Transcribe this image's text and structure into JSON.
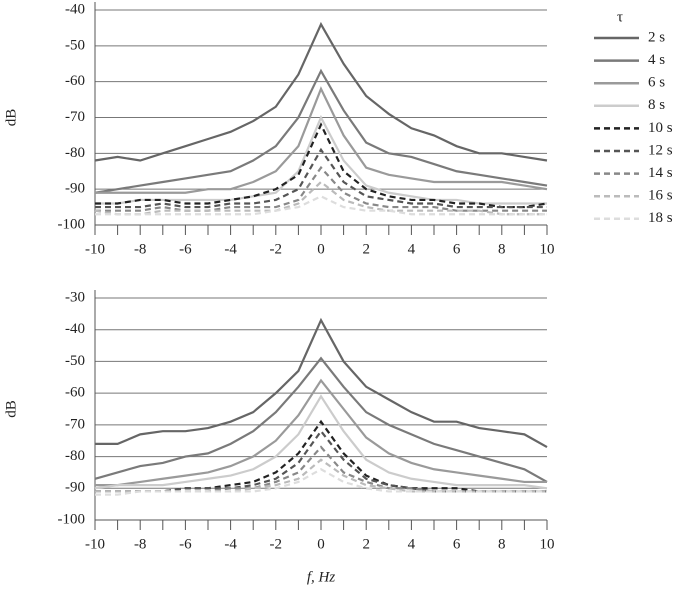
{
  "chart_data": [
    {
      "type": "line",
      "ylabel": "dB",
      "legend_title": "τ",
      "legend": "right",
      "grid": true,
      "x": [
        -10,
        -9,
        -8,
        -7,
        -6,
        -5,
        -4,
        -3,
        -2,
        -1,
        0,
        1,
        2,
        3,
        4,
        5,
        6,
        7,
        8,
        9,
        10
      ],
      "xlim": [
        -10,
        10
      ],
      "xticks": [
        -10,
        -8,
        -6,
        -4,
        -2,
        0,
        2,
        4,
        6,
        8,
        10
      ],
      "xminorticks": [
        -9,
        -7,
        -5,
        -3,
        -1,
        1,
        3,
        5,
        7,
        9
      ],
      "ylim": [
        -100,
        -40
      ],
      "yticks": [
        -100,
        -90,
        -80,
        -70,
        -60,
        -50,
        -40
      ],
      "series": [
        {
          "name": "2 s",
          "color": "#666666",
          "dash": false,
          "values": [
            -82,
            -81,
            -82,
            -80,
            -78,
            -76,
            -74,
            -71,
            -67,
            -58,
            -44,
            -55,
            -64,
            -69,
            -73,
            -75,
            -78,
            -80,
            -80,
            -81,
            -82
          ]
        },
        {
          "name": "4 s",
          "color": "#7a7a7a",
          "dash": false,
          "values": [
            -91,
            -90,
            -89,
            -88,
            -87,
            -86,
            -85,
            -82,
            -78,
            -70,
            -57,
            -68,
            -77,
            -80,
            -81,
            -83,
            -85,
            -86,
            -87,
            -88,
            -89
          ]
        },
        {
          "name": "6 s",
          "color": "#9a9a9a",
          "dash": false,
          "values": [
            -91,
            -91,
            -91,
            -91,
            -91,
            -90,
            -90,
            -88,
            -85,
            -78,
            -62,
            -75,
            -84,
            -86,
            -87,
            -88,
            -88,
            -88,
            -88,
            -89,
            -90
          ]
        },
        {
          "name": "8 s",
          "color": "#cccccc",
          "dash": false,
          "values": [
            -94,
            -94,
            -93,
            -93,
            -93,
            -93,
            -93,
            -92,
            -91,
            -85,
            -70,
            -82,
            -89,
            -91,
            -92,
            -93,
            -93,
            -94,
            -94,
            -94,
            -94
          ]
        },
        {
          "name": "10 s",
          "color": "#222222",
          "dash": true,
          "values": [
            -94,
            -94,
            -93,
            -93,
            -94,
            -94,
            -93,
            -92,
            -90,
            -86,
            -72,
            -85,
            -90,
            -92,
            -93,
            -93,
            -94,
            -94,
            -95,
            -95,
            -94
          ]
        },
        {
          "name": "12 s",
          "color": "#555555",
          "dash": true,
          "values": [
            -95,
            -95,
            -95,
            -94,
            -95,
            -95,
            -94,
            -94,
            -93,
            -90,
            -79,
            -88,
            -92,
            -93,
            -94,
            -94,
            -95,
            -95,
            -95,
            -95,
            -95
          ]
        },
        {
          "name": "14 s",
          "color": "#888888",
          "dash": true,
          "values": [
            -96,
            -96,
            -96,
            -95,
            -96,
            -96,
            -95,
            -95,
            -95,
            -93,
            -84,
            -91,
            -94,
            -95,
            -95,
            -95,
            -96,
            -96,
            -96,
            -96,
            -96
          ]
        },
        {
          "name": "16 s",
          "color": "#bbbbbb",
          "dash": true,
          "values": [
            -96,
            -97,
            -97,
            -96,
            -96,
            -96,
            -96,
            -96,
            -96,
            -94,
            -88,
            -93,
            -95,
            -96,
            -96,
            -96,
            -96,
            -96,
            -97,
            -97,
            -97
          ]
        },
        {
          "name": "18 s",
          "color": "#dddddd",
          "dash": true,
          "values": [
            -97,
            -97,
            -97,
            -97,
            -97,
            -97,
            -97,
            -97,
            -96,
            -95,
            -92,
            -95,
            -96,
            -96,
            -97,
            -97,
            -97,
            -97,
            -97,
            -97,
            -97
          ]
        }
      ]
    },
    {
      "type": "line",
      "ylabel": "dB",
      "xlabel": "f, Hz",
      "grid": true,
      "x": [
        -10,
        -9,
        -8,
        -7,
        -6,
        -5,
        -4,
        -3,
        -2,
        -1,
        0,
        1,
        2,
        3,
        4,
        5,
        6,
        7,
        8,
        9,
        10
      ],
      "xlim": [
        -10,
        10
      ],
      "xticks": [
        -10,
        -8,
        -6,
        -4,
        -2,
        0,
        2,
        4,
        6,
        8,
        10
      ],
      "xminorticks": [
        -9,
        -7,
        -5,
        -3,
        -1,
        1,
        3,
        5,
        7,
        9
      ],
      "ylim": [
        -100,
        -30
      ],
      "yticks": [
        -100,
        -90,
        -80,
        -70,
        -60,
        -50,
        -40,
        -30
      ],
      "series": [
        {
          "color": "#666666",
          "dash": false,
          "values": [
            -76,
            -76,
            -73,
            -72,
            -72,
            -71,
            -69,
            -66,
            -60,
            -53,
            -37,
            -50,
            -58,
            -62,
            -66,
            -69,
            -69,
            -71,
            -72,
            -73,
            -77
          ]
        },
        {
          "color": "#7a7a7a",
          "dash": false,
          "values": [
            -87,
            -85,
            -83,
            -82,
            -80,
            -79,
            -76,
            -72,
            -66,
            -58,
            -49,
            -58,
            -66,
            -70,
            -73,
            -76,
            -78,
            -80,
            -82,
            -84,
            -88
          ]
        },
        {
          "color": "#9a9a9a",
          "dash": false,
          "values": [
            -89,
            -89,
            -88,
            -87,
            -86,
            -85,
            -83,
            -80,
            -75,
            -67,
            -56,
            -65,
            -74,
            -79,
            -82,
            -84,
            -85,
            -86,
            -87,
            -88,
            -88
          ]
        },
        {
          "color": "#cccccc",
          "dash": false,
          "values": [
            -90,
            -89,
            -89,
            -89,
            -88,
            -87,
            -86,
            -84,
            -80,
            -73,
            -61,
            -72,
            -81,
            -85,
            -87,
            -88,
            -89,
            -89,
            -89,
            -89,
            -90
          ]
        },
        {
          "color": "#222222",
          "dash": true,
          "values": [
            -91,
            -91,
            -91,
            -91,
            -90,
            -90,
            -89,
            -88,
            -85,
            -79,
            -69,
            -79,
            -86,
            -89,
            -90,
            -90,
            -90,
            -91,
            -91,
            -91,
            -91
          ]
        },
        {
          "color": "#555555",
          "dash": true,
          "values": [
            -91,
            -91,
            -91,
            -91,
            -90,
            -90,
            -90,
            -89,
            -87,
            -82,
            -72,
            -81,
            -87,
            -89,
            -90,
            -91,
            -91,
            -91,
            -91,
            -91,
            -91
          ]
        },
        {
          "color": "#888888",
          "dash": true,
          "values": [
            -91,
            -91,
            -91,
            -91,
            -91,
            -91,
            -90,
            -90,
            -88,
            -85,
            -77,
            -85,
            -88,
            -90,
            -90,
            -91,
            -91,
            -91,
            -91,
            -91,
            -91
          ]
        },
        {
          "color": "#bbbbbb",
          "dash": true,
          "values": [
            -91,
            -91,
            -91,
            -91,
            -91,
            -91,
            -91,
            -90,
            -89,
            -87,
            -81,
            -86,
            -89,
            -90,
            -91,
            -91,
            -91,
            -91,
            -91,
            -91,
            -91
          ]
        },
        {
          "color": "#dddddd",
          "dash": true,
          "values": [
            -92,
            -92,
            -91,
            -91,
            -91,
            -91,
            -91,
            -91,
            -90,
            -88,
            -84,
            -88,
            -90,
            -91,
            -91,
            -91,
            -91,
            -91,
            -91,
            -91,
            -91
          ]
        }
      ]
    }
  ]
}
